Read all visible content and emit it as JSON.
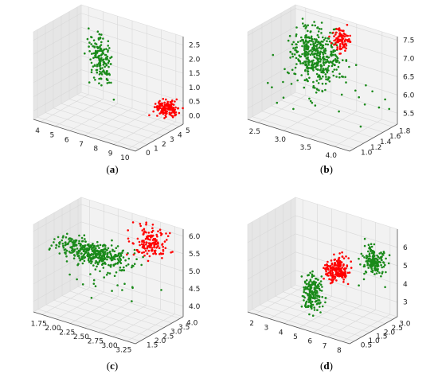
{
  "colors": {
    "class_a": "#1a8a1a",
    "class_b": "#ff0000",
    "pane": "#f2f2f2",
    "pane_side": "#e6e6e6",
    "grid": "#d8d8d8",
    "axis": "#555555"
  },
  "captions": [
    "a",
    "b",
    "c",
    "d"
  ],
  "chart_data": [
    {
      "type": "scatter3d",
      "caption": "a",
      "xlim": [
        3.5,
        10.5
      ],
      "ylim": [
        -0.5,
        5.5
      ],
      "zlim": [
        -0.3,
        2.8
      ],
      "x_ticks": [
        "4",
        "5",
        "6",
        "7",
        "8",
        "9",
        "10"
      ],
      "x_tick_values": [
        4,
        5,
        6,
        7,
        8,
        9,
        10
      ],
      "y_ticks": [
        "0",
        "1",
        "2",
        "3",
        "4",
        "5"
      ],
      "y_tick_values": [
        0,
        1,
        2,
        3,
        4,
        5
      ],
      "z_ticks": [
        "0.0",
        "0.5",
        "1.0",
        "1.5",
        "2.0",
        "2.5"
      ],
      "z_tick_values": [
        0,
        0.5,
        1,
        1.5,
        2,
        2.5
      ],
      "clusters": [
        {
          "color_key": "class_a",
          "center": [
            5.0,
            5.2,
            1.2
          ],
          "spread": [
            0.35,
            0.35,
            0.4
          ],
          "count": 160
        },
        {
          "color_key": "class_b",
          "center": [
            9.9,
            4.6,
            0.3
          ],
          "spread": [
            0.35,
            0.4,
            0.12
          ],
          "count": 140
        }
      ]
    },
    {
      "type": "scatter3d",
      "caption": "b",
      "xlim": [
        2.3,
        4.3
      ],
      "ylim": [
        0.9,
        1.9
      ],
      "zlim": [
        5.2,
        7.6
      ],
      "x_ticks": [
        "2.5",
        "3.0",
        "3.5",
        "4.0"
      ],
      "x_tick_values": [
        2.5,
        3.0,
        3.5,
        4.0
      ],
      "y_ticks": [
        "1.0",
        "1.2",
        "1.4",
        "1.6",
        "1.8"
      ],
      "y_tick_values": [
        1.0,
        1.2,
        1.4,
        1.6,
        1.8
      ],
      "z_ticks": [
        "5.5",
        "6.0",
        "6.5",
        "7.0",
        "7.5"
      ],
      "z_tick_values": [
        5.5,
        6.0,
        6.5,
        7.0,
        7.5
      ],
      "clusters": [
        {
          "color_key": "class_a",
          "center": [
            2.85,
            1.75,
            6.55
          ],
          "spread": [
            0.22,
            0.08,
            0.38
          ],
          "count": 420
        },
        {
          "color_key": "class_a",
          "center": [
            3.4,
            1.45,
            6.1
          ],
          "spread": [
            0.45,
            0.25,
            0.4
          ],
          "count": 40
        },
        {
          "color_key": "class_b",
          "center": [
            3.25,
            1.85,
            7.1
          ],
          "spread": [
            0.08,
            0.04,
            0.15
          ],
          "count": 90
        }
      ]
    },
    {
      "type": "scatter3d",
      "caption": "c",
      "xlim": [
        1.6,
        3.4
      ],
      "ylim": [
        1.2,
        4.2
      ],
      "zlim": [
        3.7,
        6.2
      ],
      "x_ticks": [
        "1.75",
        "2.00",
        "2.25",
        "2.50",
        "2.75",
        "3.00",
        "3.25"
      ],
      "x_tick_values": [
        1.75,
        2.0,
        2.25,
        2.5,
        2.75,
        3.0,
        3.25
      ],
      "y_ticks": [
        "1.5",
        "2.0",
        "2.5",
        "3.0",
        "3.5",
        "4.0"
      ],
      "y_tick_values": [
        1.5,
        2.0,
        2.5,
        3.0,
        3.5,
        4.0
      ],
      "z_ticks": [
        "4.0",
        "4.5",
        "5.0",
        "5.5",
        "6.0"
      ],
      "z_tick_values": [
        4.0,
        4.5,
        5.0,
        5.5,
        6.0
      ],
      "clusters": [
        {
          "color_key": "class_a",
          "center": [
            2.2,
            2.8,
            5.3
          ],
          "spread": [
            0.3,
            0.3,
            0.12
          ],
          "count": 380
        },
        {
          "color_key": "class_a",
          "center": [
            2.5,
            2.4,
            4.9
          ],
          "spread": [
            0.4,
            0.5,
            0.3
          ],
          "count": 40
        },
        {
          "color_key": "class_b",
          "center": [
            2.95,
            3.7,
            5.7
          ],
          "spread": [
            0.15,
            0.25,
            0.2
          ],
          "count": 150
        }
      ]
    },
    {
      "type": "scatter3d",
      "caption": "d",
      "xlim": [
        1.5,
        8.5
      ],
      "ylim": [
        0.2,
        3.3
      ],
      "zlim": [
        2.2,
        7.0
      ],
      "x_ticks": [
        "2",
        "3",
        "4",
        "5",
        "6",
        "7",
        "8"
      ],
      "x_tick_values": [
        2,
        3,
        4,
        5,
        6,
        7,
        8
      ],
      "y_ticks": [
        "0.5",
        "1.0",
        "1.5",
        "2.0",
        "2.5",
        "3.0"
      ],
      "y_tick_values": [
        0.5,
        1.0,
        1.5,
        2.0,
        2.5,
        3.0
      ],
      "z_ticks": [
        "3",
        "4",
        "5",
        "6"
      ],
      "z_tick_values": [
        3,
        4,
        5,
        6
      ],
      "clusters": [
        {
          "color_key": "class_a",
          "center": [
            4.8,
            1.3,
            3.6
          ],
          "spread": [
            0.3,
            0.2,
            0.5
          ],
          "count": 180
        },
        {
          "color_key": "class_b",
          "center": [
            5.6,
            2.1,
            4.6
          ],
          "spread": [
            0.35,
            0.25,
            0.3
          ],
          "count": 190
        },
        {
          "color_key": "class_a",
          "center": [
            7.3,
            2.9,
            5.1
          ],
          "spread": [
            0.3,
            0.2,
            0.4
          ],
          "count": 170
        }
      ]
    }
  ]
}
